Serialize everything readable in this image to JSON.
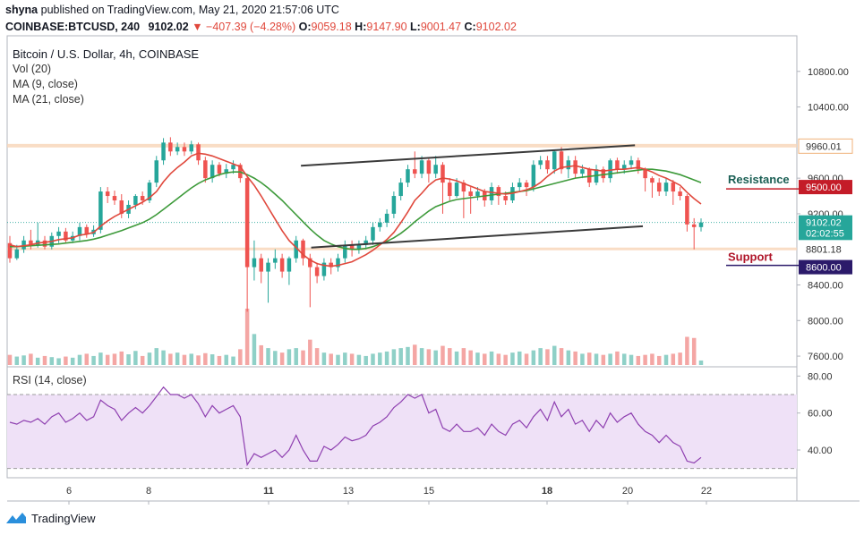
{
  "header": {
    "author": "shyna",
    "published_text": "published on TradingView.com, May 21, 2020 21:57:06 UTC",
    "symbol_line": "COINBASE:BTCUSD, 240",
    "last": "9102.02",
    "change": "−407.39 (−4.28%)",
    "o_label": "O:",
    "o_value": "9059.18",
    "h_label": "H:",
    "h_value": "9147.90",
    "l_label": "L:",
    "l_value": "9001.47",
    "c_label": "C:",
    "c_value": "9102.02"
  },
  "legend": {
    "title": "Bitcoin / U.S. Dollar, 4h, COINBASE",
    "vol": "Vol (20)",
    "ma9": "MA (9, close)",
    "ma21": "MA (21, close)",
    "rsi": "RSI (14, close)"
  },
  "annotations": {
    "resistance_label": "Resistance",
    "support_label": "Support"
  },
  "footer": {
    "brand": "TradingView"
  },
  "colors": {
    "up": "#26a69a",
    "down": "#ef5350",
    "ma9": "#e0483c",
    "ma21": "#3d9a3a",
    "rsi": "#8e3fb0",
    "resistance_text": "#1a5f54",
    "support_text": "#b0162a",
    "resistance_tag": "#c41c28",
    "support_tag": "#2b1a6a",
    "price_tag": "#26a69a"
  },
  "chart_data": {
    "type": "candlestick",
    "x_ticks": [
      "6",
      "8",
      "11",
      "13",
      "15",
      "18",
      "20",
      "22"
    ],
    "price_ticks": [
      "10800.00",
      "10400.00",
      "9600.00",
      "9200.00",
      "8400.00",
      "8000.00",
      "7600.00"
    ],
    "price_tags": [
      {
        "label": "9960.01",
        "value": 9960.01,
        "style": "outline"
      },
      {
        "label": "9500.00",
        "value": 9500,
        "style": "resistance"
      },
      {
        "label": "9102.02",
        "value": 9102.02,
        "style": "price"
      },
      {
        "label": "02:02:55",
        "value": 8985,
        "style": "price"
      },
      {
        "label": "8801.18",
        "value": 8801.18,
        "style": "plain"
      },
      {
        "label": "8600.00",
        "value": 8600,
        "style": "support"
      }
    ],
    "price_range": [
      7480,
      11200
    ],
    "resistance_level": 9500,
    "support_level": 8600,
    "channel_upper": [
      [
        0.372,
        9740
      ],
      [
        0.795,
        9970
      ]
    ],
    "channel_lower": [
      [
        0.385,
        8820
      ],
      [
        0.805,
        9060
      ]
    ],
    "rsi_ticks": [
      "80.00",
      "60.00",
      "40.00"
    ],
    "rsi_range": [
      25,
      85
    ],
    "rsi_band": [
      30,
      70
    ],
    "candles": [
      [
        8870,
        8700,
        8950,
        8650
      ],
      [
        8700,
        8800,
        8850,
        8680
      ],
      [
        8800,
        8900,
        8950,
        8760
      ],
      [
        8900,
        8850,
        9020,
        8800
      ],
      [
        8850,
        8900,
        9100,
        8820
      ],
      [
        8900,
        8830,
        8950,
        8800
      ],
      [
        8830,
        8950,
        8990,
        8800
      ],
      [
        8950,
        9000,
        9050,
        8870
      ],
      [
        9000,
        8900,
        9040,
        8870
      ],
      [
        8900,
        8950,
        9000,
        8870
      ],
      [
        8950,
        9050,
        9100,
        8900
      ],
      [
        9050,
        8970,
        9080,
        8930
      ],
      [
        8970,
        9020,
        9070,
        8940
      ],
      [
        9020,
        9450,
        9500,
        8980
      ],
      [
        9450,
        9400,
        9500,
        9320
      ],
      [
        9400,
        9350,
        9460,
        9300
      ],
      [
        9350,
        9200,
        9420,
        9150
      ],
      [
        9200,
        9300,
        9350,
        9150
      ],
      [
        9300,
        9400,
        9420,
        9250
      ],
      [
        9400,
        9350,
        9450,
        9300
      ],
      [
        9350,
        9550,
        9580,
        9320
      ],
      [
        9550,
        9800,
        9850,
        9500
      ],
      [
        9800,
        10000,
        10050,
        9750
      ],
      [
        10000,
        9900,
        10060,
        9850
      ],
      [
        9900,
        9950,
        10000,
        9860
      ],
      [
        9950,
        9900,
        10000,
        9850
      ],
      [
        9900,
        9980,
        10020,
        9870
      ],
      [
        9980,
        9800,
        10000,
        9750
      ],
      [
        9800,
        9600,
        9840,
        9550
      ],
      [
        9600,
        9750,
        9800,
        9550
      ],
      [
        9750,
        9650,
        9780,
        9620
      ],
      [
        9650,
        9700,
        9760,
        9600
      ],
      [
        9700,
        9750,
        9800,
        9650
      ],
      [
        9750,
        9600,
        9770,
        9550
      ],
      [
        9600,
        8600,
        9620,
        8100
      ],
      [
        8600,
        8700,
        8900,
        8450
      ],
      [
        8700,
        8550,
        8750,
        8420
      ],
      [
        8550,
        8650,
        8700,
        8200
      ],
      [
        8650,
        8700,
        8800,
        8580
      ],
      [
        8700,
        8550,
        8750,
        8480
      ],
      [
        8550,
        8700,
        8720,
        8400
      ],
      [
        8700,
        8900,
        8950,
        8650
      ],
      [
        8900,
        8700,
        8920,
        8620
      ],
      [
        8700,
        8600,
        8750,
        8150
      ],
      [
        8600,
        8500,
        8650,
        8420
      ],
      [
        8500,
        8650,
        8700,
        8450
      ],
      [
        8650,
        8600,
        8700,
        8520
      ],
      [
        8600,
        8700,
        8750,
        8550
      ],
      [
        8700,
        8850,
        8900,
        8650
      ],
      [
        8850,
        8800,
        8900,
        8720
      ],
      [
        8800,
        8850,
        8900,
        8750
      ],
      [
        8850,
        8900,
        8950,
        8800
      ],
      [
        8900,
        9050,
        9100,
        8850
      ],
      [
        9050,
        9100,
        9150,
        9000
      ],
      [
        9100,
        9200,
        9250,
        9050
      ],
      [
        9200,
        9400,
        9450,
        9150
      ],
      [
        9400,
        9550,
        9600,
        9350
      ],
      [
        9550,
        9700,
        9750,
        9500
      ],
      [
        9700,
        9650,
        9900,
        9600
      ],
      [
        9650,
        9800,
        9850,
        9600
      ],
      [
        9800,
        9650,
        9830,
        9550
      ],
      [
        9650,
        9750,
        9850,
        9600
      ],
      [
        9750,
        9550,
        9780,
        9200
      ],
      [
        9550,
        9400,
        9600,
        9350
      ],
      [
        9400,
        9550,
        9600,
        9380
      ],
      [
        9550,
        9450,
        9580,
        9150
      ],
      [
        9450,
        9400,
        9500,
        9200
      ],
      [
        9400,
        9450,
        9500,
        9350
      ],
      [
        9450,
        9350,
        9480,
        9280
      ],
      [
        9350,
        9500,
        9550,
        9300
      ],
      [
        9500,
        9400,
        9520,
        9300
      ],
      [
        9400,
        9350,
        9450,
        9300
      ],
      [
        9350,
        9500,
        9550,
        9320
      ],
      [
        9500,
        9550,
        9600,
        9450
      ],
      [
        9550,
        9500,
        9580,
        9400
      ],
      [
        9500,
        9750,
        9800,
        9450
      ],
      [
        9750,
        9800,
        9850,
        9700
      ],
      [
        9800,
        9700,
        9850,
        9650
      ],
      [
        9700,
        9900,
        9920,
        9650
      ],
      [
        9900,
        9700,
        9950,
        9650
      ],
      [
        9700,
        9800,
        9850,
        9600
      ],
      [
        9800,
        9650,
        9850,
        9600
      ],
      [
        9650,
        9700,
        9750,
        9600
      ],
      [
        9700,
        9550,
        9720,
        9500
      ],
      [
        9550,
        9700,
        9750,
        9520
      ],
      [
        9700,
        9600,
        9730,
        9550
      ],
      [
        9600,
        9800,
        9820,
        9550
      ],
      [
        9800,
        9700,
        9830,
        9650
      ],
      [
        9700,
        9750,
        9800,
        9650
      ],
      [
        9750,
        9800,
        9850,
        9700
      ],
      [
        9800,
        9700,
        9830,
        9650
      ],
      [
        9700,
        9600,
        9720,
        9450
      ],
      [
        9600,
        9550,
        9620,
        9380
      ],
      [
        9550,
        9450,
        9600,
        9400
      ],
      [
        9450,
        9550,
        9600,
        9400
      ],
      [
        9550,
        9450,
        9580,
        9300
      ],
      [
        9450,
        9400,
        9500,
        9350
      ],
      [
        9400,
        9080,
        9420,
        9000
      ],
      [
        9080,
        9050,
        9150,
        8800
      ],
      [
        9050,
        9102,
        9148,
        9001
      ]
    ],
    "volumes": [
      0.18,
      0.15,
      0.17,
      0.2,
      0.13,
      0.16,
      0.14,
      0.12,
      0.15,
      0.13,
      0.18,
      0.2,
      0.16,
      0.22,
      0.18,
      0.2,
      0.24,
      0.19,
      0.25,
      0.16,
      0.22,
      0.3,
      0.26,
      0.2,
      0.22,
      0.18,
      0.2,
      0.17,
      0.21,
      0.19,
      0.16,
      0.18,
      0.15,
      0.28,
      1.0,
      0.55,
      0.35,
      0.3,
      0.25,
      0.22,
      0.28,
      0.3,
      0.26,
      0.45,
      0.3,
      0.22,
      0.2,
      0.18,
      0.22,
      0.2,
      0.18,
      0.16,
      0.2,
      0.22,
      0.24,
      0.28,
      0.3,
      0.32,
      0.36,
      0.3,
      0.28,
      0.26,
      0.34,
      0.3,
      0.24,
      0.3,
      0.26,
      0.22,
      0.2,
      0.24,
      0.2,
      0.18,
      0.22,
      0.24,
      0.2,
      0.26,
      0.3,
      0.28,
      0.34,
      0.3,
      0.26,
      0.24,
      0.2,
      0.22,
      0.2,
      0.18,
      0.2,
      0.24,
      0.2,
      0.18,
      0.16,
      0.18,
      0.2,
      0.16,
      0.18,
      0.2,
      0.22,
      0.5,
      0.48,
      0.08
    ],
    "ma9": [
      8850,
      8830,
      8840,
      8850,
      8870,
      8880,
      8890,
      8910,
      8920,
      8930,
      8960,
      8970,
      8990,
      9060,
      9120,
      9170,
      9210,
      9250,
      9290,
      9330,
      9380,
      9450,
      9560,
      9650,
      9720,
      9780,
      9850,
      9880,
      9870,
      9850,
      9820,
      9790,
      9760,
      9730,
      9620,
      9520,
      9400,
      9270,
      9140,
      9010,
      8900,
      8820,
      8740,
      8680,
      8640,
      8620,
      8610,
      8620,
      8640,
      8660,
      8700,
      8740,
      8790,
      8850,
      8910,
      8990,
      9100,
      9220,
      9350,
      9430,
      9520,
      9580,
      9600,
      9590,
      9570,
      9540,
      9510,
      9480,
      9450,
      9440,
      9430,
      9420,
      9430,
      9450,
      9470,
      9500,
      9550,
      9620,
      9680,
      9720,
      9730,
      9740,
      9720,
      9700,
      9690,
      9680,
      9690,
      9700,
      9700,
      9710,
      9720,
      9700,
      9670,
      9630,
      9600,
      9560,
      9520,
      9440,
      9370,
      9310
    ],
    "ma21": [
      8830,
      8830,
      8835,
      8840,
      8845,
      8850,
      8855,
      8860,
      8870,
      8880,
      8890,
      8900,
      8915,
      8935,
      8960,
      8985,
      9010,
      9040,
      9070,
      9100,
      9140,
      9190,
      9250,
      9310,
      9370,
      9430,
      9490,
      9540,
      9580,
      9610,
      9640,
      9660,
      9670,
      9670,
      9640,
      9600,
      9550,
      9490,
      9420,
      9350,
      9270,
      9190,
      9110,
      9030,
      8960,
      8900,
      8860,
      8830,
      8810,
      8800,
      8800,
      8810,
      8830,
      8860,
      8890,
      8930,
      8980,
      9040,
      9110,
      9170,
      9230,
      9280,
      9310,
      9340,
      9360,
      9370,
      9380,
      9390,
      9400,
      9410,
      9420,
      9430,
      9440,
      9450,
      9460,
      9480,
      9500,
      9520,
      9540,
      9560,
      9580,
      9600,
      9610,
      9620,
      9630,
      9640,
      9650,
      9660,
      9670,
      9680,
      9690,
      9700,
      9700,
      9690,
      9680,
      9660,
      9640,
      9610,
      9580,
      9550
    ],
    "rsi": [
      55,
      54,
      56,
      55,
      57,
      54,
      58,
      60,
      55,
      57,
      60,
      56,
      58,
      67,
      64,
      62,
      56,
      60,
      63,
      60,
      64,
      69,
      74,
      70,
      70,
      68,
      70,
      65,
      58,
      64,
      60,
      62,
      64,
      58,
      32,
      38,
      36,
      38,
      40,
      36,
      40,
      48,
      40,
      34,
      34,
      42,
      40,
      43,
      47,
      45,
      46,
      48,
      53,
      55,
      58,
      63,
      66,
      70,
      68,
      70,
      60,
      62,
      52,
      50,
      54,
      50,
      50,
      52,
      48,
      54,
      50,
      48,
      54,
      56,
      52,
      58,
      62,
      56,
      66,
      58,
      62,
      54,
      56,
      50,
      56,
      52,
      60,
      55,
      58,
      60,
      54,
      50,
      48,
      44,
      48,
      44,
      42,
      34,
      33,
      36
    ]
  }
}
